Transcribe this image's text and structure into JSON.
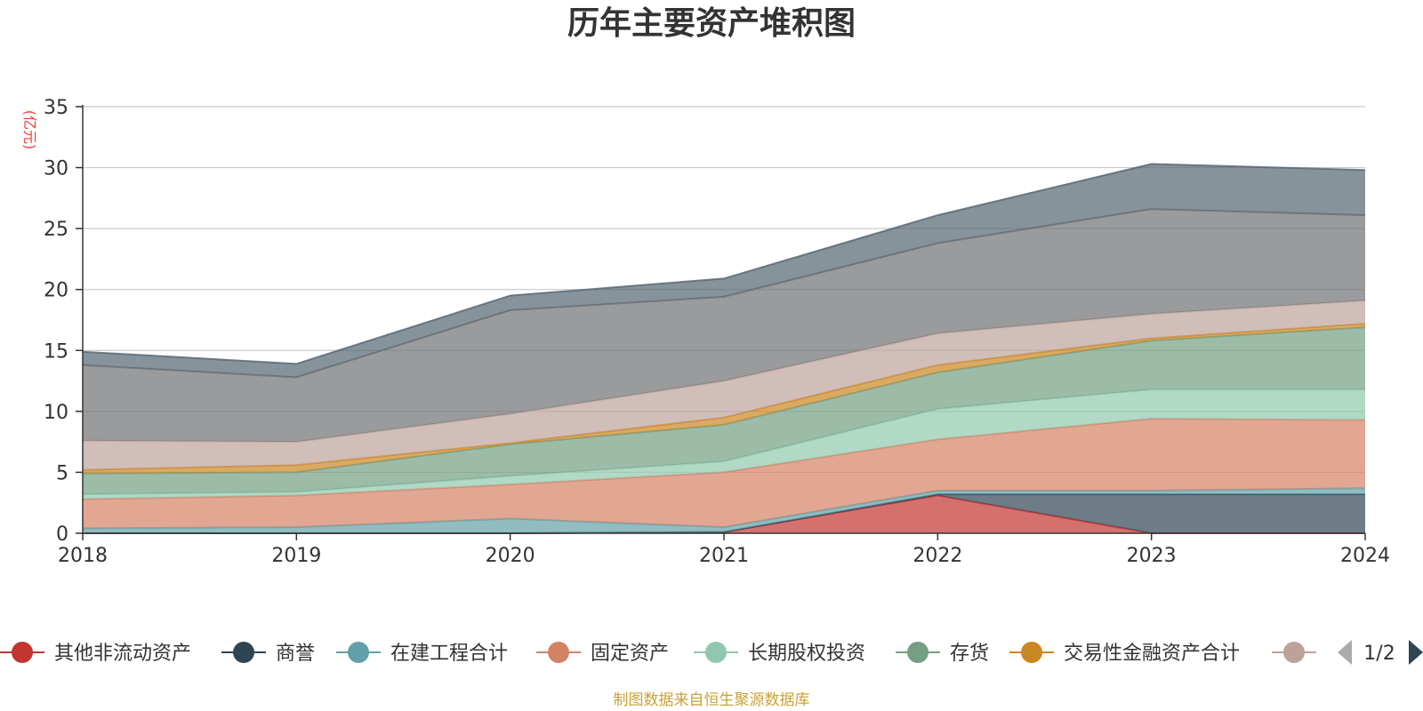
{
  "chart_data": {
    "type": "area",
    "stacked": true,
    "title": "历年主要资产堆积图",
    "y_unit": "(亿元)",
    "x": [
      "2018",
      "2019",
      "2020",
      "2021",
      "2022",
      "2023",
      "2024"
    ],
    "ylim": [
      0,
      35
    ],
    "yticks": [
      0,
      5,
      10,
      15,
      20,
      25,
      30,
      35
    ],
    "grid": true,
    "legend_position": "bottom",
    "legend_page": "1/2",
    "source": "制图数据来自恒生聚源数据库",
    "series": [
      {
        "name": "其他非流动资产",
        "color": "#c23531",
        "values": [
          0.0,
          0.0,
          0.0,
          0.1,
          3.1,
          0.0,
          0.0
        ]
      },
      {
        "name": "商誉",
        "color": "#2f4554",
        "values": [
          0.0,
          0.0,
          0.0,
          0.0,
          0.1,
          3.2,
          3.2
        ]
      },
      {
        "name": "在建工程合计",
        "color": "#61a0a8",
        "values": [
          0.4,
          0.5,
          1.2,
          0.4,
          0.3,
          0.3,
          0.5
        ]
      },
      {
        "name": "固定资产",
        "color": "#d48265",
        "values": [
          2.4,
          2.6,
          2.8,
          4.5,
          4.2,
          5.9,
          5.6
        ]
      },
      {
        "name": "长期股权投资",
        "color": "#91c7ae",
        "values": [
          0.4,
          0.3,
          0.7,
          0.9,
          2.5,
          2.4,
          2.5
        ]
      },
      {
        "name": "存货",
        "color": "#749f83",
        "values": [
          1.7,
          1.6,
          2.6,
          3.0,
          3.0,
          4.0,
          5.1
        ]
      },
      {
        "name": "交易性金融资产合计",
        "color": "#ca8622",
        "values": [
          0.3,
          0.6,
          0.1,
          0.6,
          0.6,
          0.2,
          0.3
        ]
      },
      {
        "name": "",
        "color": "#bda29a",
        "values": [
          2.4,
          1.9,
          2.4,
          3.0,
          2.6,
          2.0,
          1.9
        ]
      },
      {
        "name": "",
        "color": "#6e7074",
        "values": [
          6.2,
          5.3,
          8.5,
          6.9,
          7.4,
          8.6,
          7.0
        ]
      },
      {
        "name": "",
        "color": "#546570",
        "values": [
          1.1,
          1.1,
          1.2,
          1.5,
          2.3,
          3.7,
          3.7
        ]
      }
    ]
  }
}
